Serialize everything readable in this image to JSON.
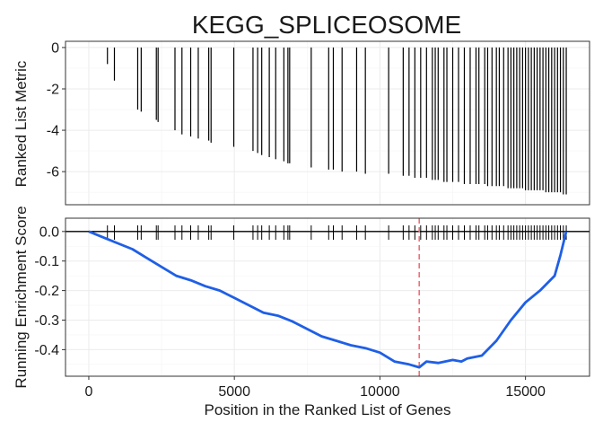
{
  "chart_data": {
    "type": "line",
    "title": "KEGG_SPLICEOSOME",
    "colors": {
      "running_score": "#1f5fe6",
      "max_deviation_line": "#f0707a",
      "gene_hits": "#000000"
    },
    "x_axis": {
      "label": "Position in the Ranked List of Genes",
      "range": [
        -800,
        17200
      ],
      "ticks": [
        0,
        5000,
        10000,
        15000
      ],
      "tick_labels": [
        "0",
        "5000",
        "10000",
        "15000"
      ]
    },
    "ranked_list_panel": {
      "ylabel": "Ranked List Metric",
      "ylim": [
        -7.6,
        0.3
      ],
      "ticks": [
        0,
        -2,
        -4,
        -6
      ],
      "tick_labels": [
        "0",
        "-2",
        "-4",
        "-6"
      ],
      "hits": [
        {
          "x": 640,
          "y": -0.8
        },
        {
          "x": 880,
          "y": -1.6
        },
        {
          "x": 1680,
          "y": -3.0
        },
        {
          "x": 1800,
          "y": -3.1
        },
        {
          "x": 2320,
          "y": -3.5
        },
        {
          "x": 2380,
          "y": -3.6
        },
        {
          "x": 2960,
          "y": -4.0
        },
        {
          "x": 3200,
          "y": -4.2
        },
        {
          "x": 3500,
          "y": -4.3
        },
        {
          "x": 3760,
          "y": -4.4
        },
        {
          "x": 4120,
          "y": -4.5
        },
        {
          "x": 4200,
          "y": -4.6
        },
        {
          "x": 4980,
          "y": -4.8
        },
        {
          "x": 5640,
          "y": -5.0
        },
        {
          "x": 5800,
          "y": -5.1
        },
        {
          "x": 5940,
          "y": -5.2
        },
        {
          "x": 6200,
          "y": -5.3
        },
        {
          "x": 6420,
          "y": -5.4
        },
        {
          "x": 6700,
          "y": -5.5
        },
        {
          "x": 6840,
          "y": -5.6
        },
        {
          "x": 6900,
          "y": -5.6
        },
        {
          "x": 7640,
          "y": -5.8
        },
        {
          "x": 8240,
          "y": -5.9
        },
        {
          "x": 8400,
          "y": -5.9
        },
        {
          "x": 8700,
          "y": -6.0
        },
        {
          "x": 9200,
          "y": -6.0
        },
        {
          "x": 9500,
          "y": -6.1
        },
        {
          "x": 10300,
          "y": -6.1
        },
        {
          "x": 10800,
          "y": -6.2
        },
        {
          "x": 11000,
          "y": -6.2
        },
        {
          "x": 11200,
          "y": -6.3
        },
        {
          "x": 11400,
          "y": -6.3
        },
        {
          "x": 11600,
          "y": -6.3
        },
        {
          "x": 11800,
          "y": -6.4
        },
        {
          "x": 11900,
          "y": -6.4
        },
        {
          "x": 12000,
          "y": -6.4
        },
        {
          "x": 12200,
          "y": -6.5
        },
        {
          "x": 12300,
          "y": -6.5
        },
        {
          "x": 12500,
          "y": -6.5
        },
        {
          "x": 12700,
          "y": -6.5
        },
        {
          "x": 12900,
          "y": -6.6
        },
        {
          "x": 13100,
          "y": -6.6
        },
        {
          "x": 13300,
          "y": -6.6
        },
        {
          "x": 13400,
          "y": -6.6
        },
        {
          "x": 13600,
          "y": -6.6
        },
        {
          "x": 13700,
          "y": -6.7
        },
        {
          "x": 13850,
          "y": -6.7
        },
        {
          "x": 14000,
          "y": -6.7
        },
        {
          "x": 14100,
          "y": -6.7
        },
        {
          "x": 14250,
          "y": -6.7
        },
        {
          "x": 14400,
          "y": -6.8
        },
        {
          "x": 14500,
          "y": -6.8
        },
        {
          "x": 14600,
          "y": -6.8
        },
        {
          "x": 14700,
          "y": -6.8
        },
        {
          "x": 14800,
          "y": -6.8
        },
        {
          "x": 14900,
          "y": -6.8
        },
        {
          "x": 15000,
          "y": -6.9
        },
        {
          "x": 15100,
          "y": -6.9
        },
        {
          "x": 15200,
          "y": -6.9
        },
        {
          "x": 15300,
          "y": -6.9
        },
        {
          "x": 15400,
          "y": -6.9
        },
        {
          "x": 15500,
          "y": -6.9
        },
        {
          "x": 15600,
          "y": -6.9
        },
        {
          "x": 15700,
          "y": -7.0
        },
        {
          "x": 15800,
          "y": -7.0
        },
        {
          "x": 15900,
          "y": -7.0
        },
        {
          "x": 16000,
          "y": -7.0
        },
        {
          "x": 16100,
          "y": -7.0
        },
        {
          "x": 16200,
          "y": -7.0
        },
        {
          "x": 16300,
          "y": -7.1
        },
        {
          "x": 16400,
          "y": -7.1
        }
      ]
    },
    "enrichment_panel": {
      "ylabel": "Running Enrichment Score",
      "ylim": [
        -0.49,
        0.045
      ],
      "ticks": [
        0.0,
        -0.1,
        -0.2,
        -0.3,
        -0.4
      ],
      "tick_labels": [
        "0.0",
        "-0.1",
        "-0.2",
        "-0.3",
        "-0.4"
      ],
      "max_deviation_x": 11350,
      "running_score": {
        "x": [
          0,
          500,
          1000,
          1500,
          2000,
          2500,
          3000,
          3500,
          4000,
          4500,
          5000,
          5500,
          6000,
          6500,
          7000,
          7500,
          8000,
          8500,
          9000,
          9500,
          10000,
          10500,
          11000,
          11350,
          11600,
          12000,
          12500,
          12800,
          13000,
          13500,
          14000,
          14500,
          15000,
          15500,
          16000,
          16200,
          16400
        ],
        "y": [
          0.0,
          -0.02,
          -0.04,
          -0.06,
          -0.09,
          -0.12,
          -0.15,
          -0.165,
          -0.185,
          -0.2,
          -0.225,
          -0.25,
          -0.275,
          -0.285,
          -0.305,
          -0.33,
          -0.355,
          -0.37,
          -0.385,
          -0.395,
          -0.41,
          -0.44,
          -0.45,
          -0.46,
          -0.44,
          -0.445,
          -0.435,
          -0.44,
          -0.43,
          -0.42,
          -0.37,
          -0.3,
          -0.24,
          -0.2,
          -0.15,
          -0.08,
          0.0
        ]
      }
    }
  }
}
